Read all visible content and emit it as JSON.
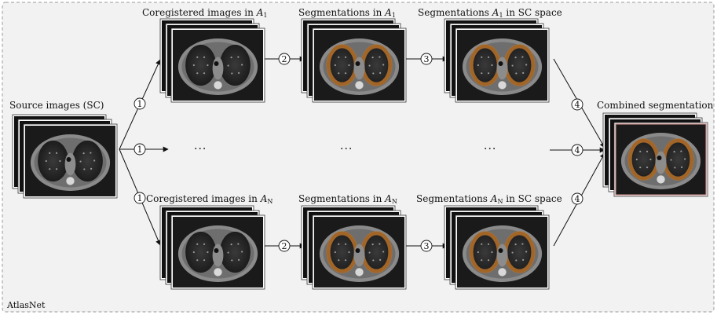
{
  "frame_label": "AtlasNet",
  "stacks": {
    "source": {
      "label": "Source images (SC)",
      "seg": false
    },
    "coreg_1": {
      "label_main": "Coregistered images in ",
      "label_var": "A",
      "label_sub": "1",
      "seg": false
    },
    "seg_1": {
      "label_main": "Segmentations in ",
      "label_var": "A",
      "label_sub": "1",
      "seg": true
    },
    "segsc_1": {
      "label_main": "Segmentations ",
      "label_var": "A",
      "label_sub": "1",
      "label_tail": " in SC space",
      "seg": true
    },
    "coreg_n": {
      "label_main": "Coregistered images in ",
      "label_var": "A",
      "label_sub": "N",
      "seg": false
    },
    "seg_n": {
      "label_main": "Segmentations in ",
      "label_var": "A",
      "label_sub": "N",
      "seg": true
    },
    "segsc_n": {
      "label_main": "Segmentations ",
      "label_var": "A",
      "label_sub": "N",
      "label_tail": " in SC space",
      "seg": true
    },
    "combined": {
      "label": "Combined segmentation",
      "seg": true
    }
  },
  "ellipsis": "···",
  "steps": [
    "1",
    "2",
    "3",
    "4"
  ],
  "colors": {
    "frame": "#9a9a9a",
    "background": "#f2f2f2",
    "ct_body": "#8a8a8a",
    "ct_dark": "#1a1a1a",
    "segmentation": "#b8722a",
    "combined_border": "#c08080"
  }
}
